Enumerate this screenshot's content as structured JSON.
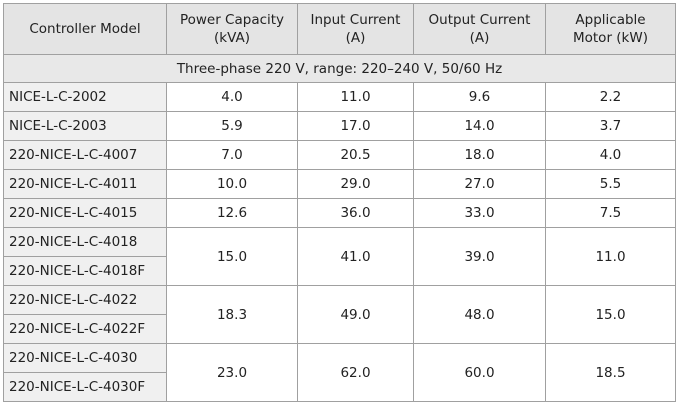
{
  "table": {
    "header": [
      [
        "Controller Model"
      ],
      [
        "Power Capacity",
        "(kVA)"
      ],
      [
        "Input Current",
        "(A)"
      ],
      [
        "Output Current",
        "(A)"
      ],
      [
        "Applicable",
        "Motor (kW)"
      ]
    ],
    "subheader": "Three-phase 220 V, range: 220–240 V, 50/60 Hz",
    "groups": [
      {
        "models": [
          "NICE-L-C-2002"
        ],
        "values": [
          "4.0",
          "11.0",
          "9.6",
          "2.2"
        ]
      },
      {
        "models": [
          "NICE-L-C-2003"
        ],
        "values": [
          "5.9",
          "17.0",
          "14.0",
          "3.7"
        ]
      },
      {
        "models": [
          "220-NICE-L-C-4007"
        ],
        "values": [
          "7.0",
          "20.5",
          "18.0",
          "4.0"
        ]
      },
      {
        "models": [
          "220-NICE-L-C-4011"
        ],
        "values": [
          "10.0",
          "29.0",
          "27.0",
          "5.5"
        ]
      },
      {
        "models": [
          "220-NICE-L-C-4015"
        ],
        "values": [
          "12.6",
          "36.0",
          "33.0",
          "7.5"
        ]
      },
      {
        "models": [
          "220-NICE-L-C-4018",
          "220-NICE-L-C-4018F"
        ],
        "values": [
          "15.0",
          "41.0",
          "39.0",
          "11.0"
        ]
      },
      {
        "models": [
          "220-NICE-L-C-4022",
          "220-NICE-L-C-4022F"
        ],
        "values": [
          "18.3",
          "49.0",
          "48.0",
          "15.0"
        ]
      },
      {
        "models": [
          "220-NICE-L-C-4030",
          "220-NICE-L-C-4030F"
        ],
        "values": [
          "23.0",
          "62.0",
          "60.0",
          "18.5"
        ]
      }
    ]
  }
}
